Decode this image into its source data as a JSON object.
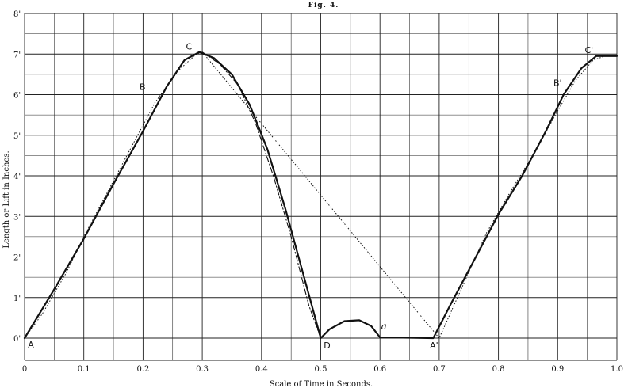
{
  "chart_data": {
    "type": "line",
    "title": "Fig. 4.",
    "xlabel": "Scale of Time in Seconds.",
    "ylabel": "Length or Lift in Inches.",
    "xlim": [
      0,
      1.0
    ],
    "ylim": [
      0,
      8
    ],
    "x_ticks": [
      "0",
      "0.1",
      "0.2",
      "0.3",
      "0.4",
      "0.5",
      "0.6",
      "0.7",
      "0.8",
      "0.9",
      "1.0"
    ],
    "y_ticks": [
      "0\"",
      "1\"",
      "2\"",
      "3\"",
      "4\"",
      "5\"",
      "6\"",
      "7\"",
      "8\""
    ],
    "grid": true,
    "series": [
      {
        "style": "solid",
        "points": [
          [
            0,
            0
          ],
          [
            0.05,
            1.2
          ],
          [
            0.1,
            2.45
          ],
          [
            0.15,
            3.8
          ],
          [
            0.2,
            5.1
          ],
          [
            0.24,
            6.2
          ],
          [
            0.27,
            6.85
          ],
          [
            0.295,
            7.05
          ],
          [
            0.32,
            6.9
          ],
          [
            0.35,
            6.5
          ],
          [
            0.38,
            5.75
          ],
          [
            0.41,
            4.65
          ],
          [
            0.44,
            3.2
          ],
          [
            0.47,
            1.6
          ],
          [
            0.5,
            0
          ],
          [
            0.515,
            0.22
          ],
          [
            0.54,
            0.42
          ],
          [
            0.565,
            0.44
          ],
          [
            0.585,
            0.3
          ],
          [
            0.6,
            0.02
          ],
          [
            0.69,
            0
          ],
          [
            0.72,
            0.85
          ],
          [
            0.76,
            1.95
          ],
          [
            0.8,
            3.05
          ],
          [
            0.84,
            4.0
          ],
          [
            0.88,
            5.1
          ],
          [
            0.91,
            6.0
          ],
          [
            0.94,
            6.65
          ],
          [
            0.965,
            6.95
          ],
          [
            1.0,
            6.95
          ]
        ]
      },
      {
        "style": "dotted",
        "points": [
          [
            0,
            0
          ],
          [
            0.03,
            0.6
          ],
          [
            0.07,
            1.6
          ],
          [
            0.1,
            2.5
          ],
          [
            0.14,
            3.6
          ],
          [
            0.18,
            4.7
          ],
          [
            0.22,
            5.8
          ],
          [
            0.26,
            6.6
          ],
          [
            0.29,
            7.0
          ],
          [
            0.3,
            7.05
          ],
          [
            0.7,
            0
          ],
          [
            0.74,
            1.3
          ],
          [
            0.78,
            2.6
          ],
          [
            0.82,
            3.6
          ],
          [
            0.86,
            4.55
          ],
          [
            0.9,
            5.6
          ],
          [
            0.93,
            6.35
          ],
          [
            0.96,
            6.85
          ],
          [
            0.98,
            6.95
          ]
        ]
      },
      {
        "style": "dash-dot",
        "points": [
          [
            0.3,
            7.05
          ],
          [
            0.33,
            6.75
          ],
          [
            0.36,
            6.25
          ],
          [
            0.39,
            5.3
          ],
          [
            0.42,
            4.0
          ],
          [
            0.45,
            2.5
          ],
          [
            0.48,
            0.8
          ],
          [
            0.5,
            0
          ]
        ]
      }
    ],
    "annotations": [
      {
        "text": "A",
        "x": 0,
        "y": 0
      },
      {
        "text": "B",
        "x": 0.23,
        "y": 6.2
      },
      {
        "text": "C",
        "x": 0.295,
        "y": 7.05
      },
      {
        "text": "D",
        "x": 0.5,
        "y": 0
      },
      {
        "text": "a",
        "x": 0.6,
        "y": 0.1
      },
      {
        "text": "A'",
        "x": 0.69,
        "y": 0
      },
      {
        "text": "B'",
        "x": 0.92,
        "y": 6.2
      },
      {
        "text": "C'",
        "x": 0.965,
        "y": 6.95
      }
    ]
  }
}
